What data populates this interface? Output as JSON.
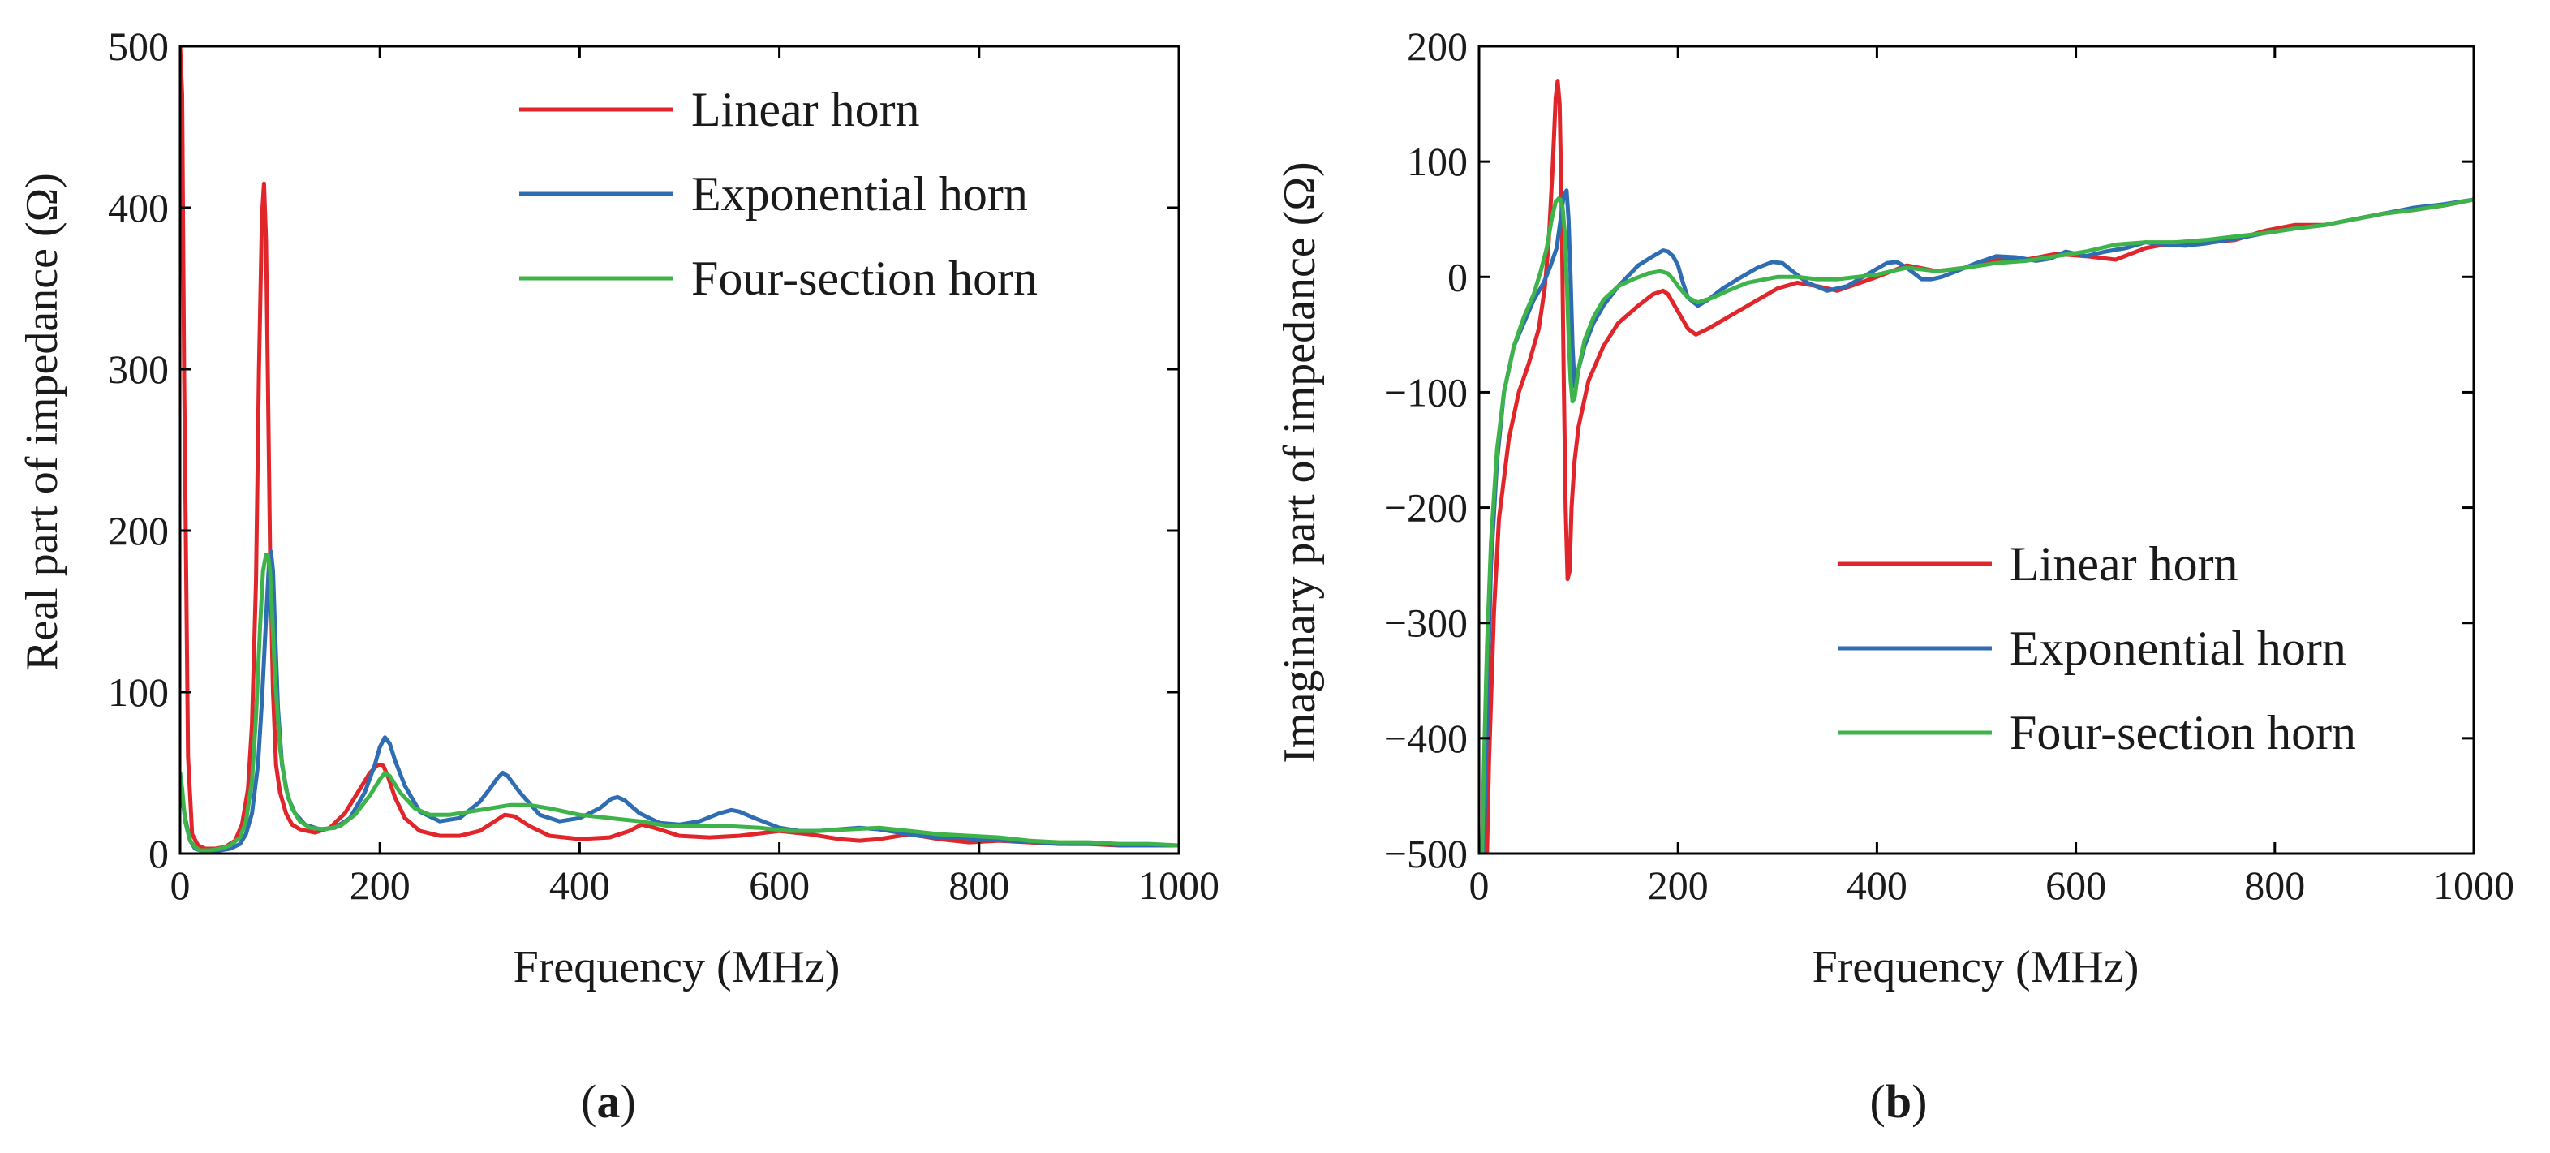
{
  "chart_data": [
    {
      "type": "line",
      "panel_label": "a",
      "xlabel": "Frequency (MHz)",
      "ylabel": "Real part of impedance (Ω)",
      "xlim": [
        0,
        1000
      ],
      "ylim": [
        0,
        500
      ],
      "xticks": [
        0,
        200,
        400,
        600,
        800,
        1000
      ],
      "yticks": [
        0,
        100,
        200,
        300,
        400,
        500
      ],
      "grid": false,
      "legend_position": "top-right",
      "series": [
        {
          "name": "Linear horn",
          "color": "#e0262b",
          "x": [
            0,
            2,
            4,
            8,
            12,
            18,
            25,
            35,
            45,
            55,
            62,
            68,
            72,
            76,
            79,
            82,
            84,
            86,
            88,
            90,
            93,
            96,
            100,
            106,
            112,
            120,
            135,
            150,
            165,
            180,
            190,
            198,
            203,
            208,
            215,
            225,
            240,
            260,
            280,
            300,
            315,
            325,
            335,
            350,
            370,
            400,
            430,
            450,
            462,
            475,
            500,
            530,
            560,
            600,
            630,
            660,
            680,
            700,
            730,
            760,
            790,
            820,
            850,
            880,
            910,
            940,
            970,
            1000
          ],
          "y": [
            500,
            470,
            300,
            60,
            12,
            5,
            3,
            3,
            4,
            8,
            18,
            40,
            80,
            170,
            300,
            395,
            415,
            380,
            290,
            190,
            100,
            55,
            38,
            25,
            18,
            15,
            13,
            16,
            25,
            40,
            50,
            55,
            55,
            48,
            35,
            22,
            14,
            11,
            11,
            14,
            20,
            24,
            23,
            17,
            11,
            9,
            10,
            14,
            18,
            16,
            11,
            10,
            11,
            14,
            12,
            9,
            8,
            9,
            12,
            9,
            7,
            8,
            7,
            6,
            6,
            5,
            5,
            5
          ]
        },
        {
          "name": "Exponential horn",
          "color": "#2f6db3",
          "x": [
            0,
            2,
            5,
            10,
            15,
            20,
            25,
            30,
            40,
            50,
            60,
            66,
            72,
            78,
            82,
            86,
            89,
            91,
            93,
            95,
            98,
            102,
            108,
            115,
            125,
            140,
            155,
            170,
            185,
            195,
            200,
            205,
            210,
            215,
            225,
            240,
            260,
            280,
            300,
            310,
            318,
            323,
            328,
            340,
            360,
            380,
            400,
            420,
            432,
            438,
            445,
            460,
            480,
            500,
            520,
            540,
            552,
            560,
            575,
            600,
            620,
            640,
            660,
            680,
            700,
            720,
            740,
            760,
            780,
            800,
            830,
            860,
            890,
            920,
            950,
            1000
          ],
          "y": [
            40,
            34,
            22,
            8,
            3,
            2,
            2,
            2,
            2,
            3,
            6,
            12,
            25,
            55,
            95,
            145,
            180,
            187,
            175,
            140,
            90,
            55,
            35,
            25,
            18,
            15,
            16,
            22,
            38,
            55,
            66,
            72,
            68,
            58,
            42,
            26,
            20,
            22,
            32,
            40,
            47,
            50,
            48,
            38,
            24,
            20,
            22,
            28,
            34,
            35,
            33,
            25,
            19,
            18,
            20,
            25,
            27,
            26,
            22,
            16,
            14,
            14,
            15,
            16,
            15,
            13,
            11,
            10,
            10,
            9,
            8,
            7,
            6,
            6,
            5,
            5
          ]
        },
        {
          "name": "Four-section horn",
          "color": "#3db34a",
          "x": [
            0,
            2,
            5,
            10,
            15,
            20,
            25,
            30,
            40,
            50,
            60,
            66,
            72,
            76,
            80,
            83,
            86,
            88,
            90,
            92,
            95,
            100,
            106,
            112,
            120,
            130,
            145,
            160,
            175,
            190,
            200,
            205,
            210,
            220,
            235,
            250,
            270,
            300,
            330,
            350,
            370,
            400,
            430,
            460,
            490,
            520,
            550,
            580,
            610,
            640,
            670,
            700,
            730,
            760,
            790,
            820,
            850,
            880,
            910,
            940,
            970,
            1000
          ],
          "y": [
            50,
            40,
            20,
            8,
            4,
            2,
            2,
            2,
            3,
            5,
            10,
            20,
            45,
            85,
            140,
            175,
            185,
            185,
            175,
            150,
            110,
            65,
            40,
            28,
            20,
            16,
            15,
            17,
            24,
            36,
            46,
            50,
            48,
            38,
            28,
            24,
            24,
            27,
            30,
            30,
            28,
            24,
            22,
            20,
            17,
            17,
            17,
            16,
            14,
            14,
            15,
            16,
            14,
            12,
            11,
            10,
            8,
            7,
            7,
            6,
            6,
            5
          ]
        }
      ]
    },
    {
      "type": "line",
      "panel_label": "b",
      "xlabel": "Frequency (MHz)",
      "ylabel": "Imaginary part of impedance (Ω)",
      "xlim": [
        0,
        1000
      ],
      "ylim": [
        -500,
        200
      ],
      "xticks": [
        0,
        200,
        400,
        600,
        800,
        1000
      ],
      "yticks": [
        -500,
        -400,
        -300,
        -200,
        -100,
        0,
        100,
        200
      ],
      "ytick_labels": [
        "−500",
        "−400",
        "−300",
        "−200",
        "−100",
        "0",
        "100",
        "200"
      ],
      "grid": false,
      "legend_position": "bottom-right",
      "series": [
        {
          "name": "Linear horn",
          "color": "#e0262b",
          "x": [
            8,
            10,
            15,
            20,
            30,
            40,
            50,
            60,
            66,
            70,
            74,
            77,
            79,
            81,
            83,
            85,
            87,
            89,
            91,
            93,
            96,
            100,
            110,
            125,
            140,
            160,
            175,
            185,
            190,
            200,
            210,
            218,
            230,
            250,
            280,
            300,
            320,
            340,
            360,
            400,
            430,
            460,
            490,
            520,
            550,
            580,
            610,
            640,
            670,
            700,
            730,
            760,
            790,
            820,
            850,
            880,
            910,
            940,
            970,
            1000
          ],
          "y": [
            -500,
            -420,
            -290,
            -210,
            -140,
            -100,
            -75,
            -45,
            -10,
            30,
            95,
            155,
            170,
            150,
            60,
            -80,
            -200,
            -262,
            -255,
            -200,
            -160,
            -130,
            -90,
            -60,
            -40,
            -25,
            -15,
            -12,
            -15,
            -30,
            -45,
            -50,
            -45,
            -35,
            -20,
            -10,
            -5,
            -8,
            -12,
            0,
            10,
            5,
            8,
            15,
            15,
            20,
            18,
            15,
            25,
            30,
            30,
            32,
            40,
            45,
            45,
            50,
            55,
            58,
            62,
            67
          ]
        },
        {
          "name": "Exponential horn",
          "color": "#2f6db3",
          "x": [
            5,
            8,
            12,
            18,
            25,
            35,
            45,
            55,
            65,
            72,
            78,
            82,
            85,
            88,
            90,
            92,
            94,
            96,
            100,
            106,
            115,
            125,
            140,
            160,
            175,
            185,
            190,
            195,
            200,
            205,
            210,
            220,
            230,
            245,
            260,
            280,
            295,
            305,
            315,
            330,
            350,
            370,
            390,
            410,
            420,
            430,
            445,
            455,
            465,
            480,
            500,
            520,
            540,
            560,
            575,
            590,
            610,
            630,
            650,
            670,
            690,
            710,
            730,
            760,
            790,
            820,
            850,
            880,
            910,
            940,
            970,
            1000
          ],
          "y": [
            -500,
            -380,
            -250,
            -160,
            -100,
            -60,
            -40,
            -20,
            -5,
            10,
            25,
            50,
            70,
            75,
            50,
            0,
            -60,
            -95,
            -80,
            -60,
            -40,
            -25,
            -8,
            10,
            18,
            23,
            22,
            18,
            10,
            -5,
            -18,
            -25,
            -20,
            -10,
            -2,
            8,
            13,
            12,
            5,
            -5,
            -12,
            -8,
            2,
            12,
            13,
            8,
            -2,
            -2,
            0,
            5,
            12,
            18,
            17,
            14,
            16,
            22,
            18,
            22,
            25,
            30,
            28,
            27,
            29,
            33,
            38,
            42,
            45,
            50,
            55,
            60,
            63,
            67
          ]
        },
        {
          "name": "Four-section horn",
          "color": "#3db34a",
          "x": [
            3,
            5,
            8,
            12,
            18,
            25,
            35,
            45,
            55,
            62,
            68,
            73,
            77,
            80,
            82,
            84,
            86,
            88,
            90,
            92,
            94,
            96,
            100,
            106,
            115,
            125,
            140,
            155,
            170,
            182,
            190,
            195,
            200,
            210,
            220,
            235,
            250,
            270,
            300,
            320,
            340,
            360,
            380,
            400,
            430,
            460,
            490,
            520,
            550,
            580,
            610,
            640,
            670,
            700,
            730,
            760,
            790,
            820,
            850,
            880,
            910,
            940,
            970,
            1000
          ],
          "y": [
            -500,
            -420,
            -320,
            -230,
            -150,
            -100,
            -60,
            -35,
            -15,
            5,
            25,
            50,
            65,
            68,
            67,
            60,
            40,
            0,
            -50,
            -90,
            -108,
            -105,
            -80,
            -55,
            -35,
            -20,
            -8,
            -2,
            3,
            5,
            3,
            -2,
            -8,
            -18,
            -22,
            -18,
            -12,
            -5,
            0,
            0,
            -2,
            -2,
            0,
            2,
            8,
            5,
            8,
            12,
            14,
            18,
            22,
            28,
            30,
            30,
            32,
            35,
            38,
            42,
            45,
            50,
            55,
            58,
            62,
            67
          ]
        }
      ]
    }
  ]
}
